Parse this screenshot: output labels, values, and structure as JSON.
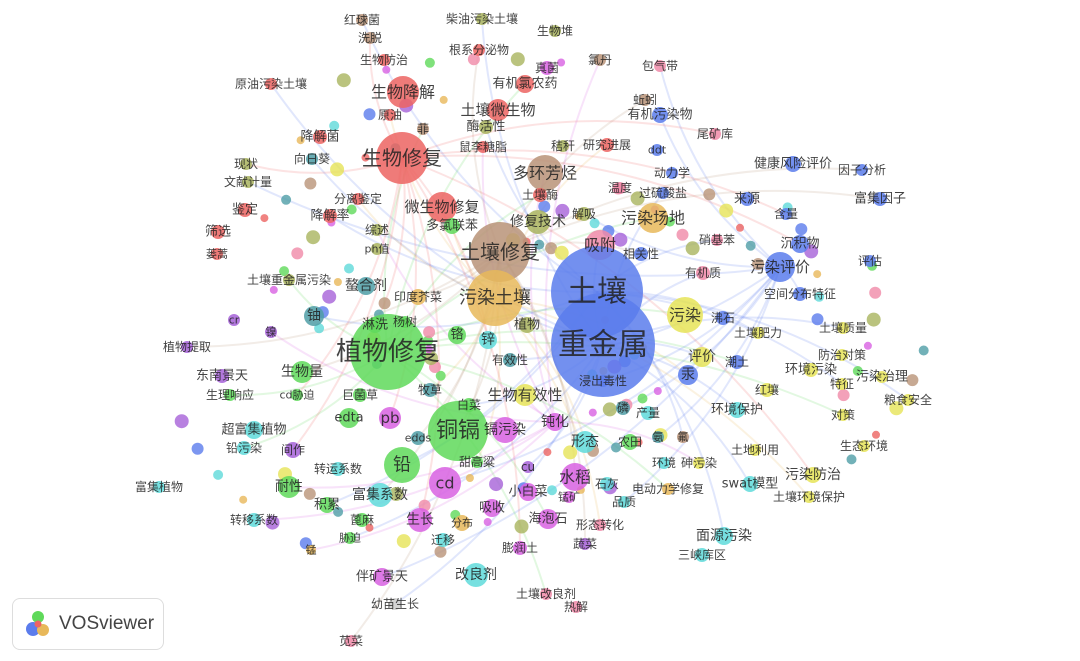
{
  "app": {
    "logo_text": "VOSviewer"
  },
  "clusters": {
    "red": "#ec6462",
    "green": "#5fd95a",
    "blue": "#5b7cec",
    "yellow": "#e6e458",
    "magenta": "#d862e2",
    "cyan": "#5fdada",
    "brown": "#b99378",
    "olive": "#a9b45e",
    "orange": "#e8b85a",
    "teal": "#4f9ea6",
    "pink": "#f08aa8",
    "violet": "#a662d8",
    "gray": "#cccccc"
  },
  "nodes": [
    {
      "label": "红球菌",
      "cluster": "brown"
    },
    {
      "label": "柴油污染土壤",
      "cluster": "olive"
    },
    {
      "label": "生物堆",
      "cluster": "olive"
    },
    {
      "label": "洗脱",
      "cluster": "brown"
    },
    {
      "label": "根系分泌物",
      "cluster": "red"
    },
    {
      "label": "生物防治",
      "cluster": "red"
    },
    {
      "label": "氯丹",
      "cluster": "brown"
    },
    {
      "label": "包气带",
      "cluster": "pink"
    },
    {
      "label": "真菌",
      "cluster": "magenta"
    },
    {
      "label": "原油污染土壤",
      "cluster": "red"
    },
    {
      "label": "有机氯农药",
      "cluster": "red"
    },
    {
      "label": "生物降解",
      "cluster": "red"
    },
    {
      "label": "蚯蚓",
      "cluster": "brown"
    },
    {
      "label": "原油",
      "cluster": "red"
    },
    {
      "label": "土壤微生物",
      "cluster": "red"
    },
    {
      "label": "有机污染物",
      "cluster": "blue"
    },
    {
      "label": "酶活性",
      "cluster": "olive"
    },
    {
      "label": "降解菌",
      "cluster": "red"
    },
    {
      "label": "菲",
      "cluster": "brown"
    },
    {
      "label": "尾矿库",
      "cluster": "pink"
    },
    {
      "label": "秸秆",
      "cluster": "olive"
    },
    {
      "label": "研究进展",
      "cluster": "red"
    },
    {
      "label": "鼠李糖脂",
      "cluster": "red"
    },
    {
      "label": "ddt",
      "cluster": "blue"
    },
    {
      "label": "生物修复",
      "cluster": "red"
    },
    {
      "label": "向日葵",
      "cluster": "teal"
    },
    {
      "label": "健康风险评价",
      "cluster": "blue"
    },
    {
      "label": "现状",
      "cluster": "olive"
    },
    {
      "label": "因子分析",
      "cluster": "blue"
    },
    {
      "label": "动力学",
      "cluster": "blue"
    },
    {
      "label": "多环芳烃",
      "cluster": "brown"
    },
    {
      "label": "文献计量",
      "cluster": "olive"
    },
    {
      "label": "温度",
      "cluster": "pink"
    },
    {
      "label": "过硫酸盐",
      "cluster": "blue"
    },
    {
      "label": "土壤酶",
      "cluster": "red"
    },
    {
      "label": "来源",
      "cluster": "blue"
    },
    {
      "label": "富集因子",
      "cluster": "blue"
    },
    {
      "label": "分离鉴定",
      "cluster": "red"
    },
    {
      "label": "鉴定",
      "cluster": "red"
    },
    {
      "label": "解吸",
      "cluster": "olive"
    },
    {
      "label": "降解率",
      "cluster": "red"
    },
    {
      "label": "微生物修复",
      "cluster": "red"
    },
    {
      "label": "污染场地",
      "cluster": "orange"
    },
    {
      "label": "含量",
      "cluster": "blue"
    },
    {
      "label": "修复技术",
      "cluster": "olive"
    },
    {
      "label": "多氯联苯",
      "cluster": "green"
    },
    {
      "label": "综述",
      "cluster": "olive"
    },
    {
      "label": "筛选",
      "cluster": "red"
    },
    {
      "label": "硝基苯",
      "cluster": "pink"
    },
    {
      "label": "吸附",
      "cluster": "pink"
    },
    {
      "label": "ph值",
      "cluster": "olive"
    },
    {
      "label": "沉积物",
      "cluster": "blue"
    },
    {
      "label": "相关性",
      "cluster": "blue"
    },
    {
      "label": "蒌蒿",
      "cluster": "red"
    },
    {
      "label": "土壤修复",
      "cluster": "brown"
    },
    {
      "label": "污染评价",
      "cluster": "blue"
    },
    {
      "label": "评估",
      "cluster": "blue"
    },
    {
      "label": "有机质",
      "cluster": "pink"
    },
    {
      "label": "土壤重金属污染",
      "cluster": "olive"
    },
    {
      "label": "螯合剂",
      "cluster": "teal"
    },
    {
      "label": "印度芥菜",
      "cluster": "orange"
    },
    {
      "label": "污染土壤",
      "cluster": "orange"
    },
    {
      "label": "土壤",
      "cluster": "blue"
    },
    {
      "label": "空间分布特征",
      "cluster": "blue"
    },
    {
      "label": "铀",
      "cluster": "teal"
    },
    {
      "label": "cr",
      "cluster": "violet"
    },
    {
      "label": "污染",
      "cluster": "yellow"
    },
    {
      "label": "淋洗",
      "cluster": "green"
    },
    {
      "label": "杨树",
      "cluster": "green"
    },
    {
      "label": "植物",
      "cluster": "olive"
    },
    {
      "label": "镍",
      "cluster": "violet"
    },
    {
      "label": "沸石",
      "cluster": "blue"
    },
    {
      "label": "土壤肥力",
      "cluster": "yellow"
    },
    {
      "label": "土壤质量",
      "cluster": "yellow"
    },
    {
      "label": "铬",
      "cluster": "green"
    },
    {
      "label": "锌",
      "cluster": "cyan"
    },
    {
      "label": "植物提取",
      "cluster": "violet"
    },
    {
      "label": "植物修复",
      "cluster": "green"
    },
    {
      "label": "重金属",
      "cluster": "blue"
    },
    {
      "label": "有效性",
      "cluster": "teal"
    },
    {
      "label": "防治对策",
      "cluster": "yellow"
    },
    {
      "label": "评价",
      "cluster": "yellow"
    },
    {
      "label": "潮土",
      "cluster": "blue"
    },
    {
      "label": "东南景天",
      "cluster": "violet"
    },
    {
      "label": "生物量",
      "cluster": "green"
    },
    {
      "label": "汞",
      "cluster": "blue"
    },
    {
      "label": "环境污染",
      "cluster": "yellow"
    },
    {
      "label": "浸出毒性",
      "cluster": "blue"
    },
    {
      "label": "特征",
      "cluster": "yellow"
    },
    {
      "label": "污染治理",
      "cluster": "yellow"
    },
    {
      "label": "生理响应",
      "cluster": "green"
    },
    {
      "label": "cd胁迫",
      "cluster": "green"
    },
    {
      "label": "巨菌草",
      "cluster": "green"
    },
    {
      "label": "牧草",
      "cluster": "teal"
    },
    {
      "label": "生物有效性",
      "cluster": "yellow"
    },
    {
      "label": "红壤",
      "cluster": "yellow"
    },
    {
      "label": "粮食安全",
      "cluster": "yellow"
    },
    {
      "label": "白菜",
      "cluster": "green"
    },
    {
      "label": "edta",
      "cluster": "green"
    },
    {
      "label": "pb",
      "cluster": "magenta"
    },
    {
      "label": "铜镉",
      "cluster": "green"
    },
    {
      "label": "镉污染",
      "cluster": "magenta"
    },
    {
      "label": "钝化",
      "cluster": "magenta"
    },
    {
      "label": "磷",
      "cluster": "teal"
    },
    {
      "label": "产量",
      "cluster": "cyan"
    },
    {
      "label": "环境保护",
      "cluster": "cyan"
    },
    {
      "label": "对策",
      "cluster": "yellow"
    },
    {
      "label": "超富集植物",
      "cluster": "cyan"
    },
    {
      "label": "edds",
      "cluster": "teal"
    },
    {
      "label": "形态",
      "cluster": "cyan"
    },
    {
      "label": "农田",
      "cluster": "green"
    },
    {
      "label": "氨",
      "cluster": "teal"
    },
    {
      "label": "氟",
      "cluster": "brown"
    },
    {
      "label": "生态环境",
      "cluster": "yellow"
    },
    {
      "label": "铅污染",
      "cluster": "cyan"
    },
    {
      "label": "间作",
      "cluster": "violet"
    },
    {
      "label": "土地利用",
      "cluster": "yellow"
    },
    {
      "label": "甜高粱",
      "cluster": "green"
    },
    {
      "label": "砷污染",
      "cluster": "yellow"
    },
    {
      "label": "环境",
      "cluster": "cyan"
    },
    {
      "label": "铅",
      "cluster": "green"
    },
    {
      "label": "cu",
      "cluster": "violet"
    },
    {
      "label": "转运系数",
      "cluster": "cyan"
    },
    {
      "label": "污染防治",
      "cluster": "yellow"
    },
    {
      "label": "水稻",
      "cluster": "magenta"
    },
    {
      "label": "富集植物",
      "cluster": "cyan"
    },
    {
      "label": "耐性",
      "cluster": "green"
    },
    {
      "label": "cd",
      "cluster": "magenta"
    },
    {
      "label": "石灰",
      "cluster": "cyan"
    },
    {
      "label": "swat模型",
      "cluster": "cyan"
    },
    {
      "label": "电动力学修复",
      "cluster": "orange"
    },
    {
      "label": "小白菜",
      "cluster": "magenta"
    },
    {
      "label": "富集系数",
      "cluster": "cyan"
    },
    {
      "label": "土壤环境保护",
      "cluster": "yellow"
    },
    {
      "label": "锰矿",
      "cluster": "magenta"
    },
    {
      "label": "品质",
      "cluster": "cyan"
    },
    {
      "label": "积累",
      "cluster": "green"
    },
    {
      "label": "吸收",
      "cluster": "magenta"
    },
    {
      "label": "海泡石",
      "cluster": "magenta"
    },
    {
      "label": "生长",
      "cluster": "magenta"
    },
    {
      "label": "分布",
      "cluster": "orange"
    },
    {
      "label": "形态转化",
      "cluster": "pink"
    },
    {
      "label": "转移系数",
      "cluster": "cyan"
    },
    {
      "label": "蓖麻",
      "cluster": "green"
    },
    {
      "label": "面源污染",
      "cluster": "cyan"
    },
    {
      "label": "胁迫",
      "cluster": "green"
    },
    {
      "label": "迁移",
      "cluster": "cyan"
    },
    {
      "label": "膨润土",
      "cluster": "magenta"
    },
    {
      "label": "蔬菜",
      "cluster": "violet"
    },
    {
      "label": "三峡库区",
      "cluster": "cyan"
    },
    {
      "label": "锰",
      "cluster": "orange"
    },
    {
      "label": "伴矿景天",
      "cluster": "magenta"
    },
    {
      "label": "改良剂",
      "cluster": "cyan"
    },
    {
      "label": "幼苗生长",
      "cluster": "gray"
    },
    {
      "label": "土壤改良剂",
      "cluster": "pink"
    },
    {
      "label": "热解",
      "cluster": "pink"
    },
    {
      "label": "苋菜",
      "cluster": "pink"
    }
  ]
}
